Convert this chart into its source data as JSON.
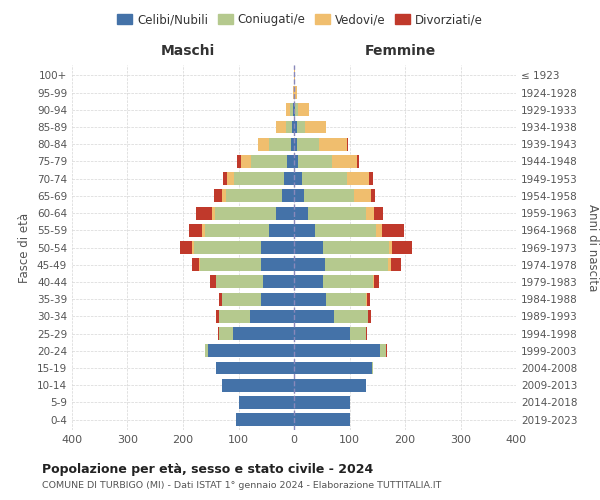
{
  "age_groups": [
    "0-4",
    "5-9",
    "10-14",
    "15-19",
    "20-24",
    "25-29",
    "30-34",
    "35-39",
    "40-44",
    "45-49",
    "50-54",
    "55-59",
    "60-64",
    "65-69",
    "70-74",
    "75-79",
    "80-84",
    "85-89",
    "90-94",
    "95-99",
    "100+"
  ],
  "birth_years": [
    "2019-2023",
    "2014-2018",
    "2009-2013",
    "2004-2008",
    "1999-2003",
    "1994-1998",
    "1989-1993",
    "1984-1988",
    "1979-1983",
    "1974-1978",
    "1969-1973",
    "1964-1968",
    "1959-1963",
    "1954-1958",
    "1949-1953",
    "1944-1948",
    "1939-1943",
    "1934-1938",
    "1929-1933",
    "1924-1928",
    "≤ 1923"
  ],
  "colors": {
    "celibi": "#4472a8",
    "coniugati": "#b5c98e",
    "vedovi": "#f0be6e",
    "divorziati": "#c0392b"
  },
  "maschi": {
    "celibi": [
      105,
      100,
      130,
      140,
      155,
      110,
      80,
      60,
      55,
      60,
      60,
      45,
      32,
      22,
      18,
      12,
      5,
      3,
      2,
      0,
      0
    ],
    "coniugati": [
      0,
      0,
      0,
      0,
      5,
      25,
      55,
      70,
      85,
      110,
      120,
      115,
      110,
      100,
      90,
      65,
      40,
      12,
      5,
      0,
      0
    ],
    "vedovi": [
      0,
      0,
      0,
      0,
      0,
      0,
      0,
      0,
      0,
      2,
      3,
      5,
      5,
      8,
      12,
      18,
      20,
      18,
      8,
      2,
      0
    ],
    "divorziati": [
      0,
      0,
      0,
      0,
      0,
      2,
      5,
      5,
      12,
      12,
      22,
      25,
      30,
      15,
      8,
      8,
      0,
      0,
      0,
      0,
      0
    ]
  },
  "femmine": {
    "celibi": [
      100,
      100,
      130,
      140,
      155,
      100,
      72,
      58,
      52,
      55,
      52,
      38,
      25,
      18,
      15,
      8,
      5,
      5,
      2,
      0,
      0
    ],
    "coniugati": [
      0,
      0,
      0,
      2,
      10,
      30,
      62,
      72,
      90,
      115,
      120,
      110,
      105,
      90,
      80,
      60,
      40,
      15,
      5,
      0,
      0
    ],
    "vedovi": [
      0,
      0,
      0,
      0,
      0,
      0,
      0,
      2,
      2,
      5,
      5,
      10,
      15,
      30,
      40,
      45,
      50,
      38,
      20,
      5,
      2
    ],
    "divorziati": [
      0,
      0,
      0,
      0,
      2,
      2,
      5,
      5,
      10,
      18,
      35,
      40,
      15,
      8,
      8,
      5,
      2,
      0,
      0,
      0,
      0
    ]
  },
  "title": "Popolazione per età, sesso e stato civile - 2024",
  "subtitle": "COMUNE DI TURBIGO (MI) - Dati ISTAT 1° gennaio 2024 - Elaborazione TUTTITALIA.IT",
  "xlabel_left": "Maschi",
  "xlabel_right": "Femmine",
  "ylabel_left": "Fasce di età",
  "ylabel_right": "Anni di nascita",
  "xlim": 400,
  "legend_labels": [
    "Celibi/Nubili",
    "Coniugati/e",
    "Vedovi/e",
    "Divorziati/e"
  ],
  "bg_color": "#ffffff",
  "grid_color": "#cccccc"
}
